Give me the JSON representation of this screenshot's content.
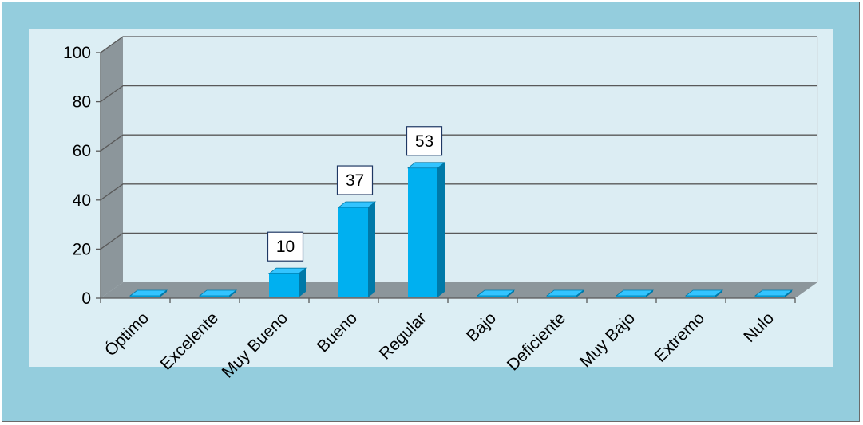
{
  "chart_data": {
    "type": "bar",
    "categories": [
      "Óptimo",
      "Excelente",
      "Muy Bueno",
      "Bueno",
      "Regular",
      "Bajo",
      "Deficiente",
      "Muy Bajo",
      "Extremo",
      "Nulo"
    ],
    "values": [
      0,
      0,
      10,
      37,
      53,
      0,
      0,
      0,
      0,
      0
    ],
    "data_labels": [
      "",
      "",
      "10",
      "37",
      "53",
      "",
      "",
      "",
      "",
      ""
    ],
    "title": "",
    "xlabel": "",
    "ylabel": "",
    "ylim": [
      0,
      100
    ],
    "yticks": [
      0,
      20,
      40,
      60,
      80,
      100
    ],
    "grid": true,
    "legend": "none",
    "three_d": true,
    "colors": {
      "bar_front": "#00b0f0",
      "bar_side": "#0079a8",
      "bar_top": "#33c4ff",
      "plot_back": "#dcedf3",
      "plot_wall": "#8c969b",
      "plot_floor": "#8c969b",
      "frame_bg": "#94cddd",
      "gridline": "#595959"
    }
  }
}
